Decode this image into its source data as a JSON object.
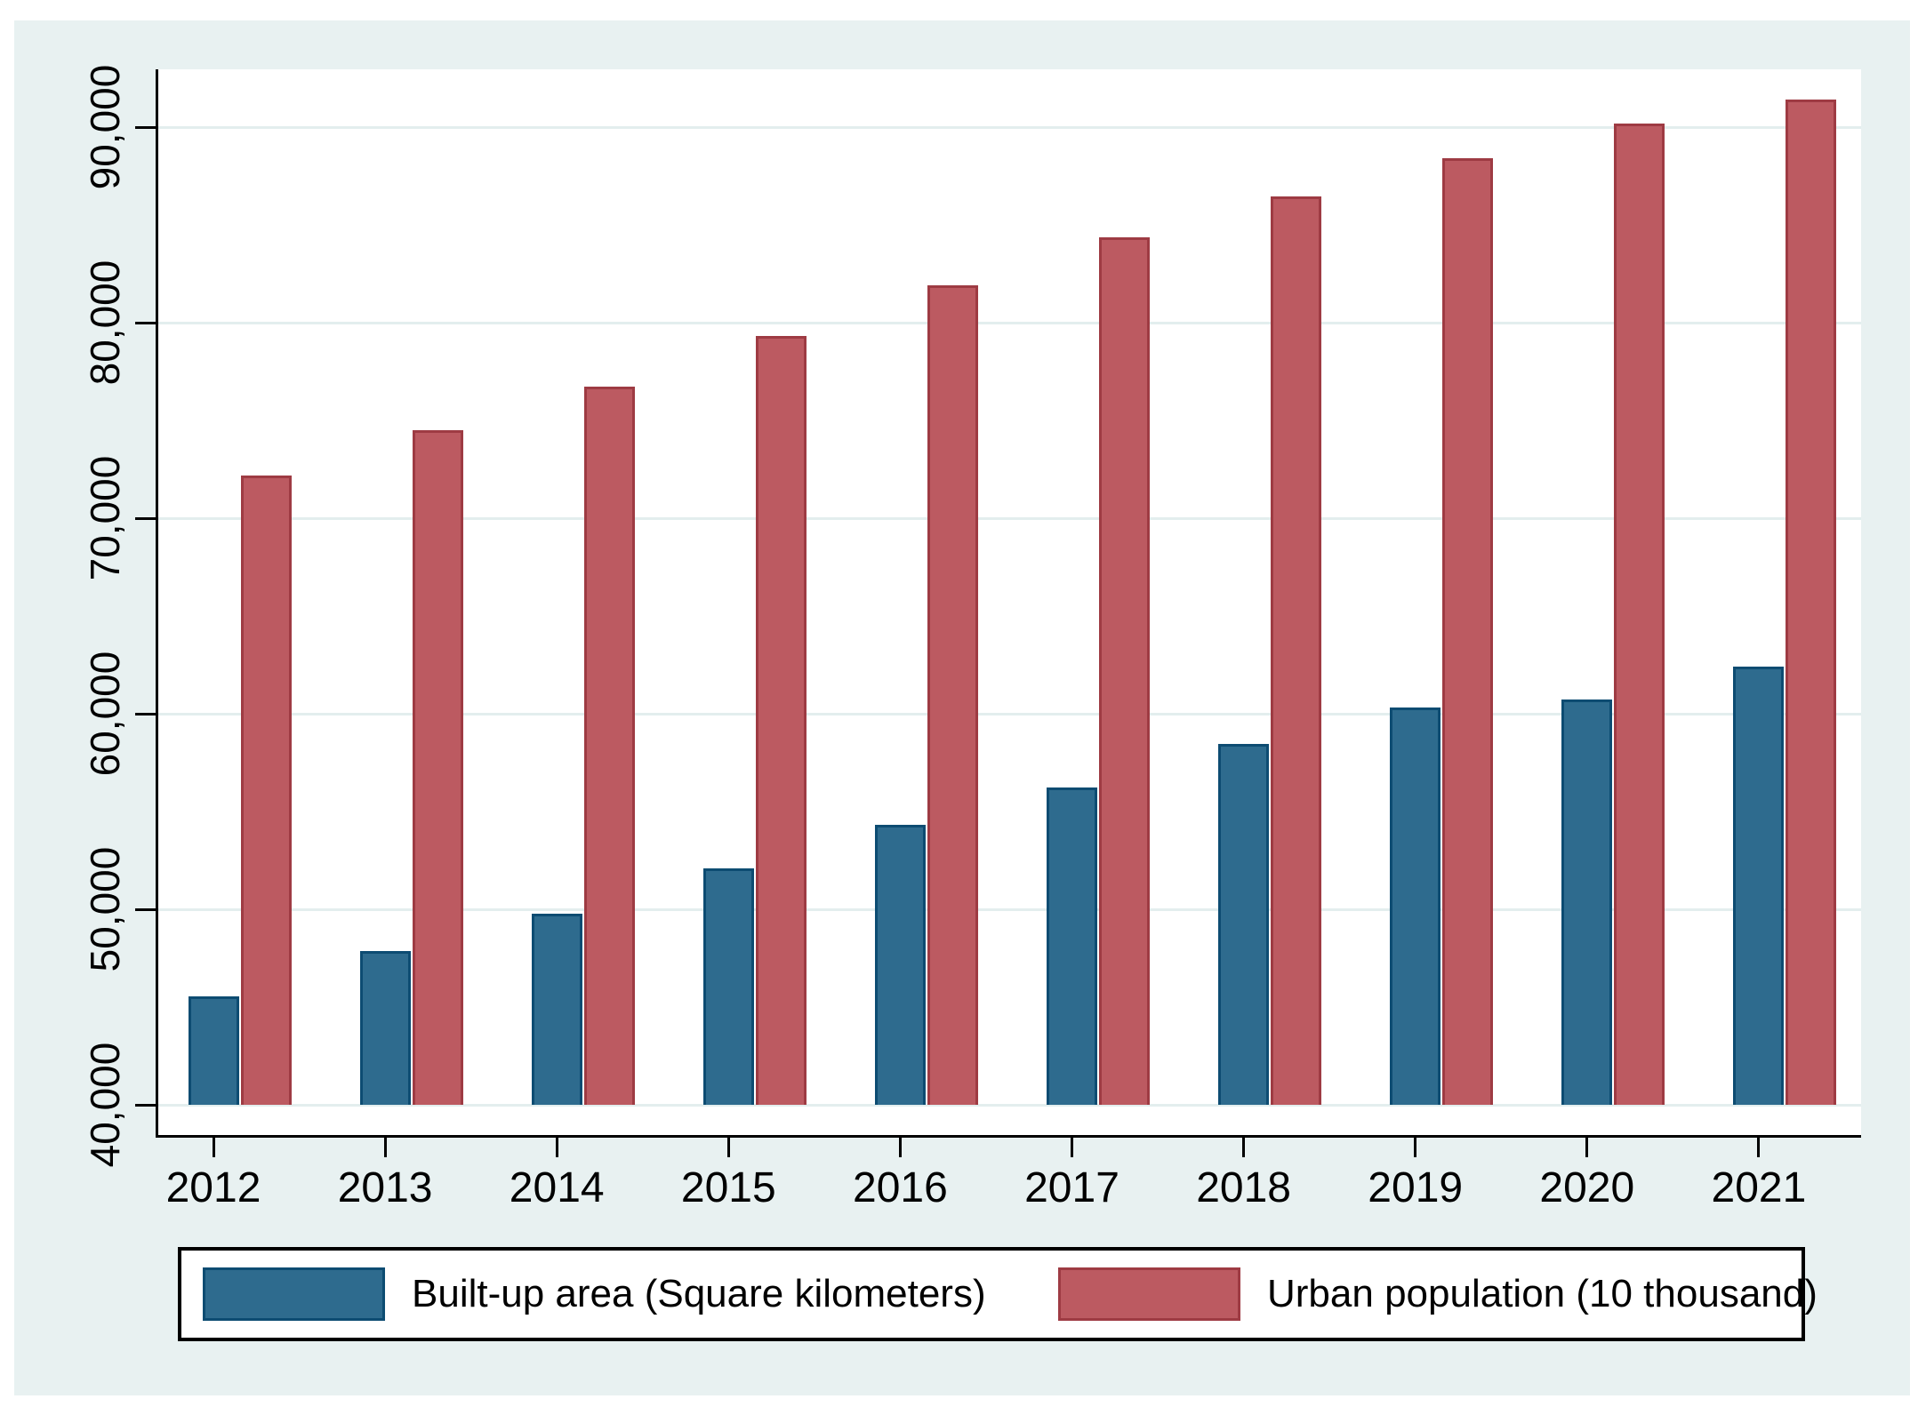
{
  "chart_data": {
    "type": "bar",
    "title": "",
    "xlabel": "",
    "ylabel": "",
    "categories": [
      "2012",
      "2013",
      "2014",
      "2015",
      "2016",
      "2017",
      "2018",
      "2019",
      "2020",
      "2021"
    ],
    "series": [
      {
        "name": "Built-up area (Square kilometers)",
        "fill_color": "#2e6b8e",
        "border_color": "#0d4c72",
        "values": [
          45566,
          47855,
          49773,
          52102,
          54331,
          56225,
          58456,
          60312,
          60721,
          62421
        ]
      },
      {
        "name": "Urban population (10 thousand)",
        "fill_color": "#bc5a61",
        "border_color": "#9e3b43",
        "values": [
          72175,
          74502,
          76738,
          79302,
          81924,
          84343,
          86433,
          88426,
          90199,
          91425
        ]
      }
    ],
    "y_axis": {
      "tick_labels": [
        "40,000",
        "50,000",
        "60,000",
        "70,000",
        "80,000",
        "90,000"
      ],
      "tick_values": [
        40000,
        50000,
        60000,
        70000,
        80000,
        90000
      ],
      "min": 40000,
      "max": 92950
    },
    "grid": true,
    "legend_position": "bottom",
    "colors": {
      "canvas_background": "#e8f1f1",
      "plot_background": "#ffffff",
      "gridline": "#e3eeee",
      "axis": "#000000",
      "text": "#000000"
    }
  }
}
